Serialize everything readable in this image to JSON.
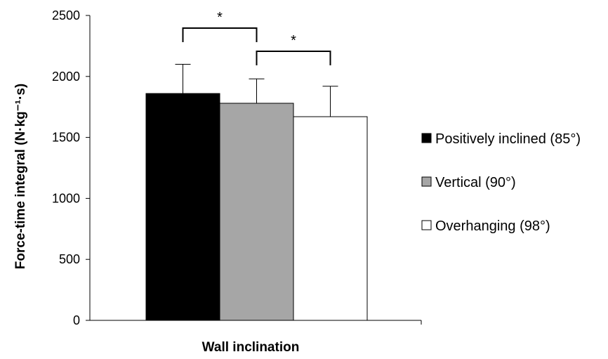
{
  "chart_data": {
    "type": "bar",
    "title": "",
    "xlabel": "Wall inclination",
    "ylabel": "Force-time integral (N·kg⁻¹·s)",
    "ylim": [
      0,
      2500
    ],
    "yticks": [
      "0",
      "500",
      "1000",
      "1500",
      "2000",
      "2500"
    ],
    "grid": false,
    "legend_position": "right",
    "series": [
      {
        "name": "Positively inclined (85°)",
        "value": 1860,
        "error": 240,
        "color": "#000000"
      },
      {
        "name": "Vertical (90°)",
        "value": 1780,
        "error": 200,
        "color": "#a6a6a6"
      },
      {
        "name": "Overhanging (98°)",
        "value": 1670,
        "error": 250,
        "color": "#ffffff"
      }
    ],
    "significance": [
      {
        "between": [
          "Positively inclined (85°)",
          "Vertical (90°)"
        ],
        "label": "*"
      },
      {
        "between": [
          "Vertical (90°)",
          "Overhanging (98°)"
        ],
        "label": "*"
      }
    ]
  }
}
